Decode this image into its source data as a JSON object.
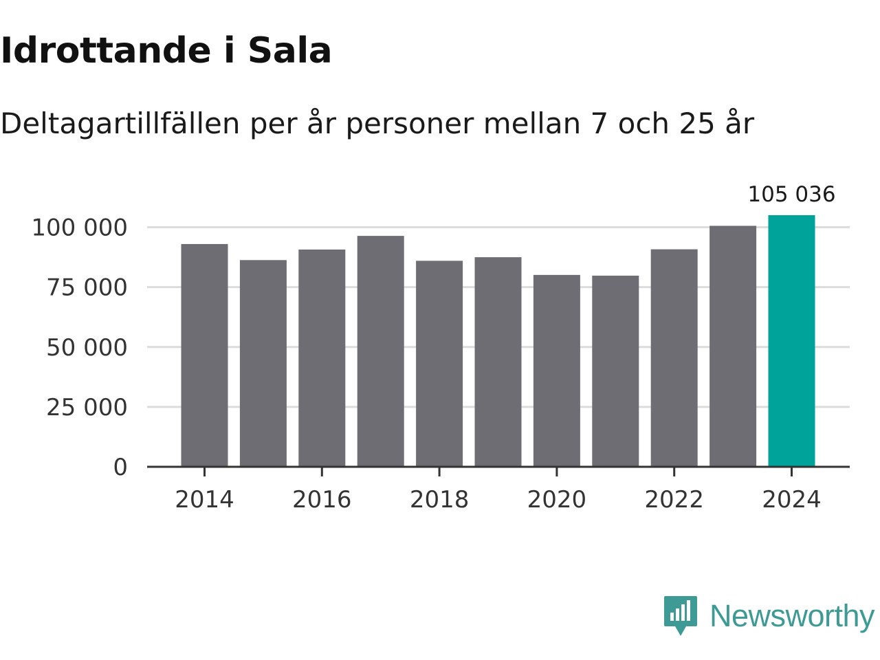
{
  "header": {
    "title": "Idrottande i Sala",
    "subtitle": "Deltagartillfällen per år personer mellan 7 och 25 år"
  },
  "chart_data": {
    "type": "bar",
    "title": "Idrottande i Sala",
    "subtitle": "Deltagartillfällen per år personer mellan 7 och 25 år",
    "xlabel": "",
    "ylabel": "",
    "categories": [
      "2014",
      "2015",
      "2016",
      "2017",
      "2018",
      "2019",
      "2020",
      "2021",
      "2022",
      "2023",
      "2024"
    ],
    "values": [
      93000,
      86300,
      90700,
      96400,
      86000,
      87500,
      80100,
      79800,
      90800,
      100600,
      105036
    ],
    "x_tick_labels": [
      "2014",
      "2016",
      "2018",
      "2020",
      "2022",
      "2024"
    ],
    "y_ticks": [
      {
        "value": 0,
        "label": "0"
      },
      {
        "value": 25000,
        "label": "25 000"
      },
      {
        "value": 50000,
        "label": "50 000"
      },
      {
        "value": 75000,
        "label": "75 000"
      },
      {
        "value": 100000,
        "label": "100 000"
      }
    ],
    "ylim": [
      0,
      105036
    ],
    "grid": true,
    "annotation": {
      "category": "2024",
      "label": "105 036"
    },
    "colors": {
      "bar": "#6e6d73",
      "highlight": "#00a39a",
      "grid": "#dcdcdc",
      "axis": "#333333"
    }
  },
  "branding": {
    "logo_text": "Newsworthy",
    "logo_color": "#3d9a94",
    "icon": "newsworthy-logo-icon"
  }
}
